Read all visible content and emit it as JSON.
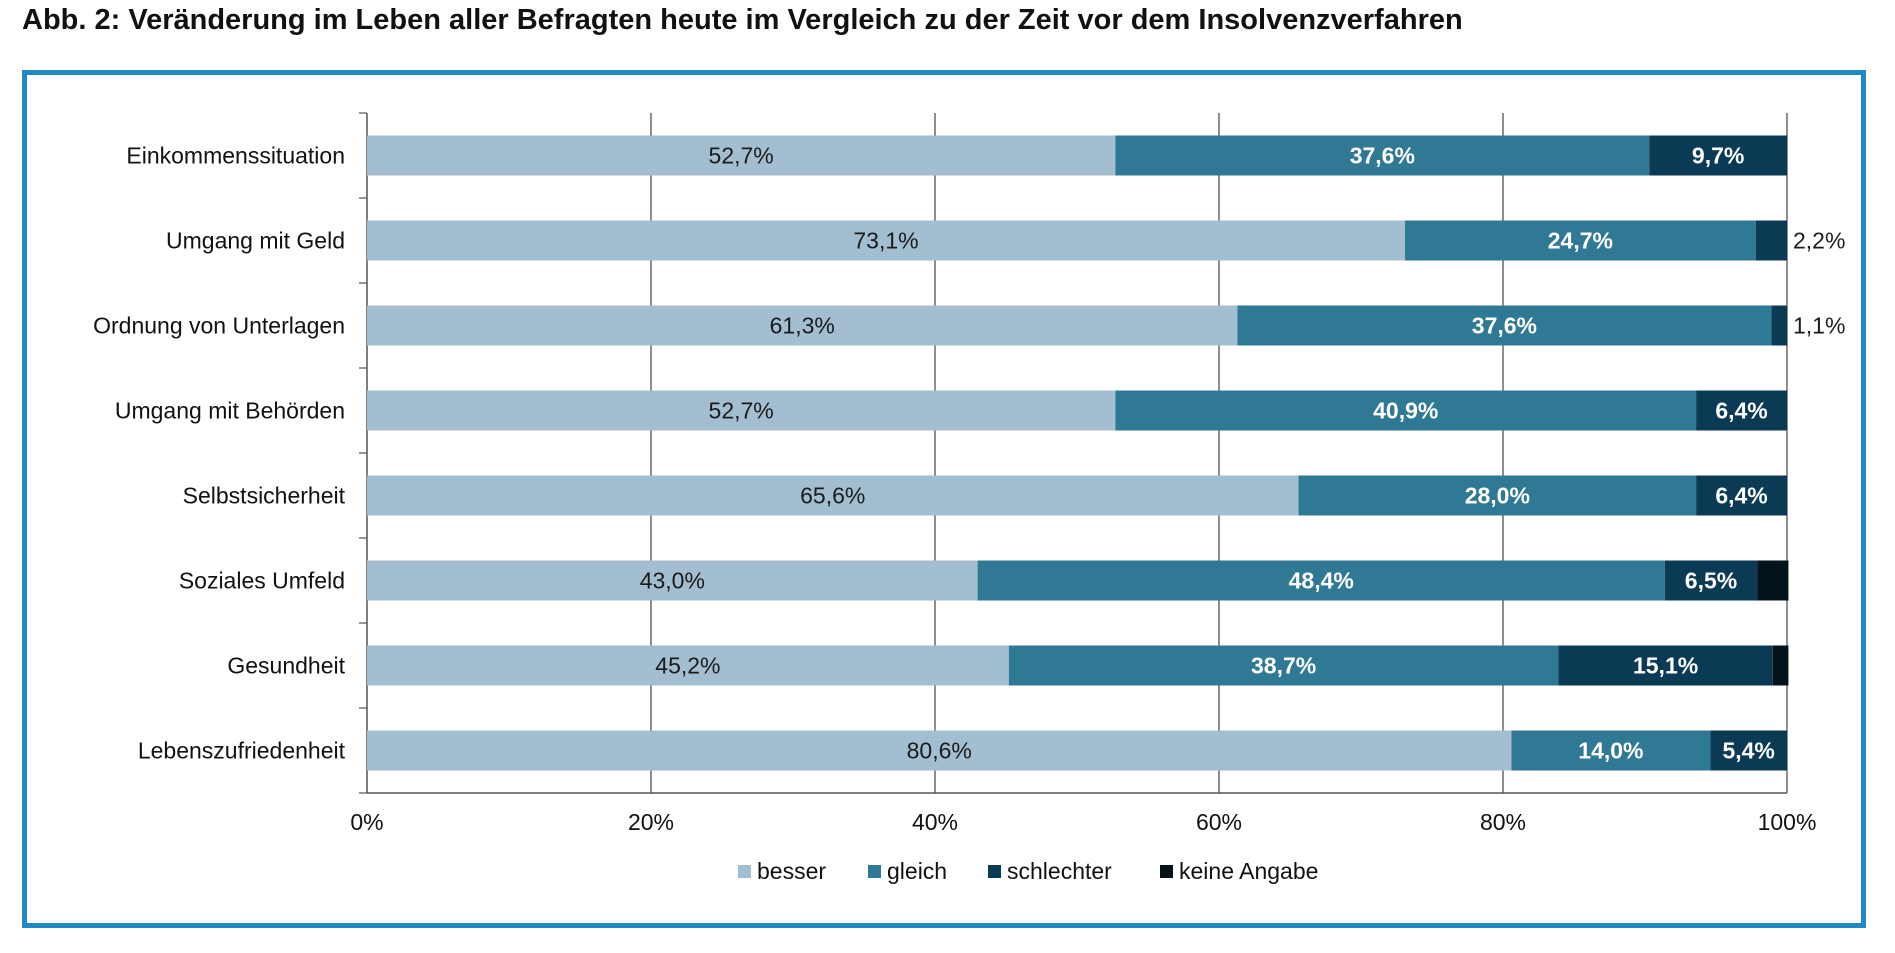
{
  "title": "Abb. 2: Veränderung im Leben aller Befragten heute im Vergleich zu der Zeit vor dem Insolvenzverfahren",
  "colors": {
    "frame": "#1f8bc4",
    "besser": "#a3bdd1",
    "gleich": "#307995",
    "schlechter": "#0b3a55",
    "keine_angabe": "#04121c"
  },
  "chart_data": {
    "type": "bar",
    "orientation": "horizontal",
    "stacked": true,
    "percent_stacked": true,
    "categories": [
      "Einkommenssituation",
      "Umgang mit Geld",
      "Ordnung von Unterlagen",
      "Umgang mit Behörden",
      "Selbstsicherheit",
      "Soziales Umfeld",
      "Gesundheit",
      "Lebenszufriedenheit"
    ],
    "series": [
      {
        "name": "besser",
        "values": [
          52.7,
          73.1,
          61.3,
          52.7,
          65.6,
          43.0,
          45.2,
          80.6
        ],
        "labels": [
          "52,7%",
          "73,1%",
          "61,3%",
          "52,7%",
          "65,6%",
          "43,0%",
          "45,2%",
          "80,6%"
        ]
      },
      {
        "name": "gleich",
        "values": [
          37.6,
          24.7,
          37.6,
          40.9,
          28.0,
          48.4,
          38.7,
          14.0
        ],
        "labels": [
          "37,6%",
          "24,7%",
          "37,6%",
          "40,9%",
          "28,0%",
          "48,4%",
          "38,7%",
          "14,0%"
        ]
      },
      {
        "name": "schlechter",
        "values": [
          9.7,
          2.2,
          1.1,
          6.4,
          6.4,
          6.5,
          15.1,
          5.4
        ],
        "labels": [
          "9,7%",
          "2,2%",
          "1,1%",
          "6,4%",
          "6,4%",
          "6,5%",
          "15,1%",
          "5,4%"
        ]
      },
      {
        "name": "keine Angabe",
        "values": [
          0,
          0,
          0,
          0,
          0,
          2.2,
          1.1,
          0
        ],
        "labels": [
          "",
          "",
          "",
          "",
          "",
          "",
          "",
          ""
        ]
      }
    ],
    "xlim": [
      0,
      100
    ],
    "xticks": [
      "0%",
      "20%",
      "40%",
      "60%",
      "80%",
      "100%"
    ],
    "grid": "vertical",
    "legend": "bottom"
  }
}
